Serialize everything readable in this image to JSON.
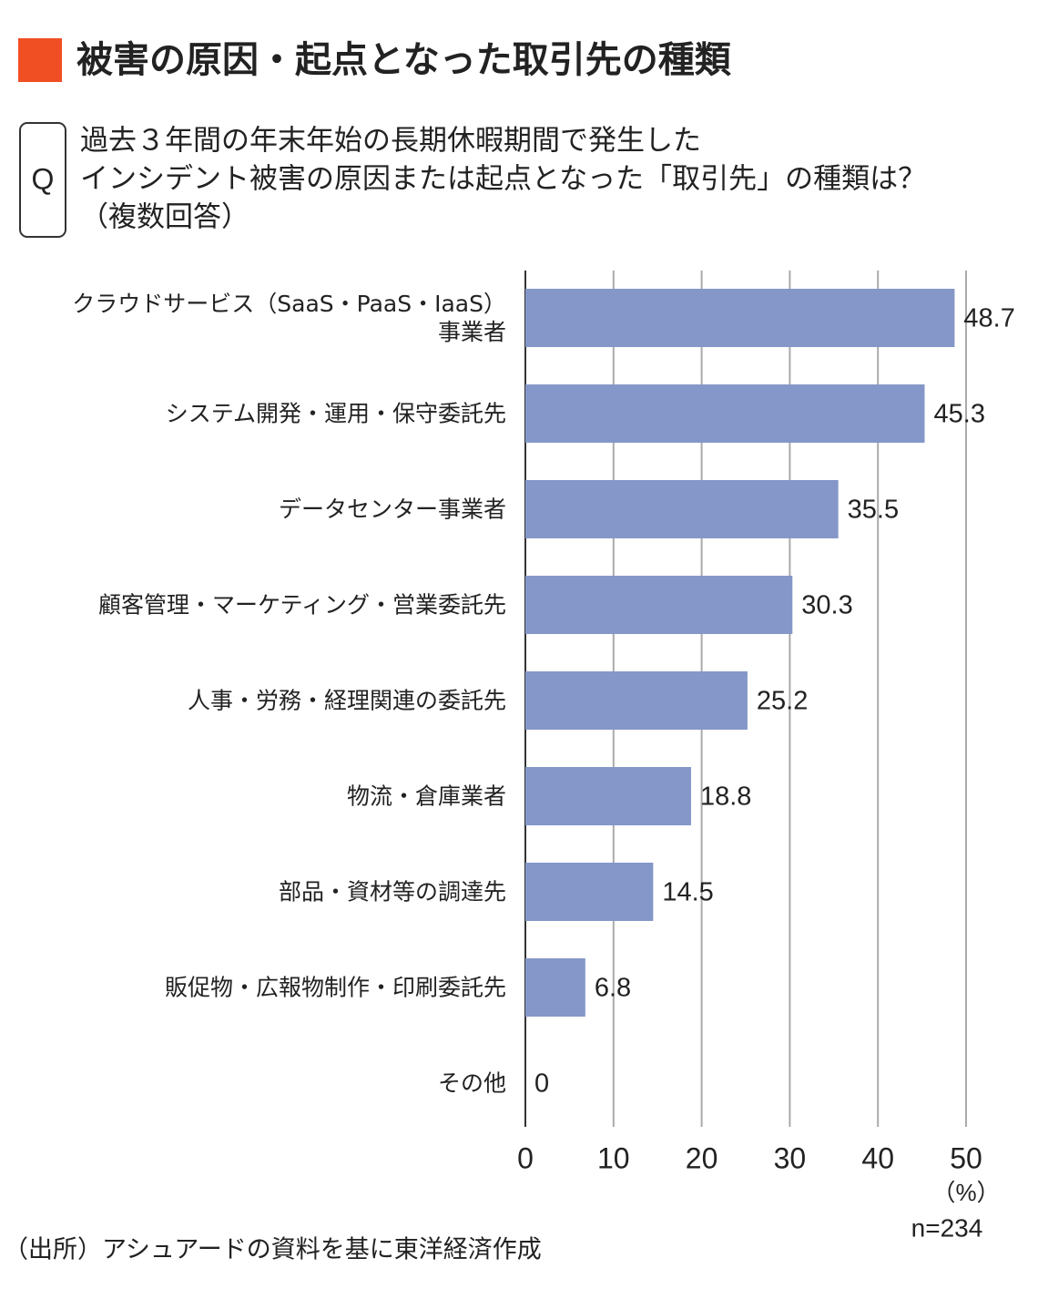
{
  "chart_data": {
    "type": "bar",
    "orientation": "horizontal",
    "title": "被害の原因・起点となった取引先の種類",
    "question_label": "Q",
    "question": [
      "過去３年間の年末年始の長期休暇期間で発生した",
      "インシデント被害の原因または起点となった「取引先」の種類は？",
      "（複数回答）"
    ],
    "categories": [
      "クラウドサービス（SaaS・PaaS・IaaS）\n事業者",
      "システム開発・運用・保守委託先",
      "データセンター事業者",
      "顧客管理・マーケティング・営業委託先",
      "人事・労務・経理関連の委託先",
      "物流・倉庫業者",
      "部品・資材等の調達先",
      "販促物・広報物制作・印刷委託先",
      "その他"
    ],
    "values": [
      48.7,
      45.3,
      35.5,
      30.3,
      25.2,
      18.8,
      14.5,
      6.8,
      0
    ],
    "color": "#8497c8",
    "xlim": [
      0,
      50
    ],
    "xticks": [
      0,
      10,
      20,
      30,
      40,
      50
    ],
    "grid": true,
    "x_unit": "（%）",
    "note": "n=234",
    "source": "（出所）アシュアードの資料を基に東洋経済作成"
  }
}
